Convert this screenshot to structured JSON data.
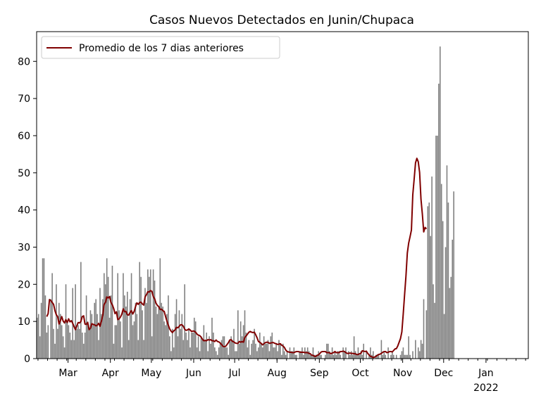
{
  "chart_data": {
    "type": "bar",
    "title": "Casos Nuevos Detectados en Junin/Chupaca",
    "xlabel": "",
    "ylabel": "",
    "ylim": [
      0,
      88
    ],
    "yticks": [
      0,
      10,
      20,
      30,
      40,
      50,
      60,
      70,
      80
    ],
    "xrange": [
      "2021-02-06",
      "2022-01-31"
    ],
    "xticks": [
      {
        "date": "2021-03-01",
        "label": "Mar"
      },
      {
        "date": "2021-04-01",
        "label": "Apr"
      },
      {
        "date": "2021-05-01",
        "label": "May"
      },
      {
        "date": "2021-06-01",
        "label": "Jun"
      },
      {
        "date": "2021-07-01",
        "label": "Jul"
      },
      {
        "date": "2021-08-01",
        "label": "Aug"
      },
      {
        "date": "2021-09-01",
        "label": "Sep"
      },
      {
        "date": "2021-10-01",
        "label": "Oct"
      },
      {
        "date": "2021-11-01",
        "label": "Nov"
      },
      {
        "date": "2021-12-01",
        "label": "Dec"
      },
      {
        "date": "2022-01-01",
        "label": "Jan"
      }
    ],
    "year_label": "2022",
    "legend": {
      "position": "upper-left",
      "label": "Promedio de los 7 dias anteriores"
    },
    "grid": false,
    "bar_color": "#808080",
    "line_color": "#800000",
    "series": [
      {
        "name": "Casos Nuevos",
        "kind": "bar",
        "start_date": "2021-02-06",
        "values": [
          11,
          12,
          6,
          15,
          27,
          27,
          17,
          7,
          9,
          0,
          16,
          23,
          8,
          4,
          20,
          8,
          15,
          12,
          9,
          6,
          3,
          20,
          10,
          9,
          7,
          5,
          19,
          5,
          20,
          8,
          9,
          8,
          26,
          7,
          4,
          7,
          17,
          10,
          8,
          13,
          12,
          9,
          15,
          16,
          12,
          5,
          19,
          12,
          16,
          23,
          20,
          27,
          22,
          11,
          17,
          25,
          4,
          9,
          9,
          23,
          13,
          10,
          3,
          23,
          17,
          14,
          18,
          5,
          16,
          23,
          9,
          10,
          15,
          12,
          5,
          26,
          22,
          13,
          5,
          19,
          15,
          24,
          22,
          24,
          6,
          24,
          21,
          14,
          12,
          14,
          27,
          15,
          14,
          10,
          9,
          12,
          17,
          6,
          2,
          8,
          3,
          12,
          16,
          6,
          13,
          8,
          12,
          5,
          20,
          7,
          5,
          8,
          3,
          7,
          7,
          11,
          10,
          3,
          6,
          2,
          6,
          5,
          9,
          5,
          7,
          2,
          6,
          4,
          11,
          7,
          3,
          2,
          1,
          3,
          4,
          5,
          6,
          6,
          3,
          3,
          1,
          5,
          6,
          5,
          8,
          2,
          2,
          13,
          4,
          10,
          6,
          9,
          13,
          7,
          3,
          5,
          1,
          4,
          5,
          8,
          4,
          2,
          3,
          7,
          4,
          3,
          6,
          4,
          4,
          5,
          2,
          6,
          7,
          3,
          3,
          4,
          2,
          5,
          4,
          1,
          4,
          2,
          1,
          2,
          0,
          3,
          2,
          2,
          3,
          1,
          1,
          0,
          2,
          2,
          3,
          1,
          3,
          2,
          3,
          2,
          1,
          1,
          3,
          1,
          1,
          1,
          2,
          1,
          1,
          0,
          0,
          1,
          4,
          4,
          2,
          1,
          3,
          1,
          2,
          1,
          2,
          2,
          1,
          0,
          3,
          2,
          3,
          0,
          2,
          1,
          2,
          1,
          6,
          2,
          1,
          3,
          1,
          2,
          1,
          4,
          0,
          2,
          0,
          1,
          3,
          1,
          2,
          0,
          1,
          1,
          1,
          0,
          5,
          1,
          2,
          1,
          0,
          3,
          0,
          1,
          2,
          1,
          0,
          1,
          0,
          0,
          1,
          2,
          3,
          1,
          1,
          1,
          6,
          1,
          0,
          2,
          0,
          5,
          0,
          3,
          2,
          5,
          4,
          16,
          0,
          13,
          41,
          42,
          33,
          49,
          20,
          15,
          60,
          60,
          74,
          84,
          47,
          37,
          12,
          30,
          52,
          42,
          19,
          22,
          32,
          45
        ]
      },
      {
        "name": "Promedio de los 7 dias anteriores",
        "kind": "line",
        "start_date": "2021-02-06",
        "values": [
          null,
          null,
          null,
          null,
          null,
          null,
          null,
          11.3,
          12.1,
          15.9,
          15.6,
          15.1,
          14.6,
          12.9,
          11.8,
          11.3,
          9.3,
          10.2,
          11.3,
          10.1,
          9.6,
          10.5,
          9.7,
          10.7,
          9.9,
          10.2,
          9.5,
          8.6,
          7.8,
          8.8,
          9.7,
          9.6,
          10.0,
          11.3,
          11.5,
          9.3,
          9.2,
          9.7,
          7.8,
          8.2,
          9.4,
          9.2,
          9.1,
          8.8,
          9.0,
          9.5,
          8.7,
          10.0,
          11.6,
          14.6,
          15.1,
          16.6,
          16.3,
          16.7,
          15.1,
          14.5,
          13.5,
          12.1,
          12.6,
          10.5,
          10.7,
          11.2,
          12.0,
          13.4,
          12.6,
          12.7,
          11.8,
          11.7,
          12.4,
          12.9,
          12.0,
          12.7,
          14.0,
          15.0,
          14.6,
          15.1,
          15.2,
          14.7,
          14.4,
          16.6,
          17.2,
          18.0,
          17.9,
          18.3,
          18.1,
          16.7,
          16.1,
          14.9,
          14.3,
          14.0,
          13.2,
          13.3,
          12.9,
          12.7,
          11.3,
          10.1,
          9.0,
          8.0,
          7.4,
          7.0,
          7.5,
          7.7,
          8.4,
          8.3,
          8.7,
          9.1,
          9.1,
          8.7,
          7.9,
          7.6,
          7.7,
          8.0,
          7.7,
          7.3,
          7.4,
          7.4,
          7.1,
          6.6,
          6.3,
          6.2,
          5.8,
          5.2,
          4.8,
          4.9,
          4.8,
          5.1,
          5.0,
          5.1,
          4.8,
          4.8,
          4.6,
          5.0,
          4.6,
          4.5,
          4.2,
          3.8,
          3.3,
          3.2,
          3.3,
          3.8,
          4.3,
          5.0,
          5.1,
          4.6,
          4.5,
          4.2,
          4.1,
          4.1,
          4.6,
          4.4,
          4.6,
          4.4,
          5.7,
          6.1,
          6.6,
          7.1,
          7.3,
          7.1,
          7.0,
          7.1,
          6.4,
          5.6,
          4.6,
          4.4,
          4.1,
          3.7,
          4.0,
          4.3,
          4.4,
          4.4,
          4.1,
          4.2,
          4.3,
          4.3,
          4.1,
          4.0,
          3.8,
          3.9,
          4.0,
          3.6,
          3.4,
          3.0,
          2.3,
          1.9,
          1.8,
          1.7,
          1.7,
          1.6,
          1.6,
          1.8,
          1.9,
          1.9,
          1.8,
          1.7,
          1.7,
          1.7,
          1.6,
          1.6,
          1.6,
          1.4,
          1.3,
          0.9,
          0.9,
          0.6,
          0.6,
          0.9,
          1.0,
          1.4,
          1.8,
          1.9,
          1.9,
          1.9,
          1.6,
          1.6,
          1.6,
          1.3,
          1.5,
          1.6,
          1.9,
          1.6,
          1.6,
          1.6,
          1.9,
          1.9,
          2.0,
          1.9,
          1.6,
          1.4,
          1.4,
          1.5,
          1.4,
          1.4,
          1.3,
          1.3,
          1.1,
          1.1,
          1.3,
          1.4,
          2.1,
          2.0,
          1.9,
          2.0,
          1.4,
          1.0,
          0.6,
          0.5,
          0.3,
          0.4,
          0.6,
          0.9,
          1.1,
          1.2,
          1.4,
          1.7,
          1.9,
          1.9,
          1.6,
          1.7,
          1.9,
          1.9,
          1.8,
          2.2,
          2.6,
          2.7,
          3.4,
          4.4,
          5.4,
          7.2,
          12.0,
          17.2,
          22.2,
          28.4,
          31.1,
          32.8,
          34.6,
          44.1,
          48.3,
          52.7,
          53.9,
          53.0,
          50.1,
          42.9,
          38.9,
          34.1,
          35.3,
          34.9
        ]
      }
    ]
  }
}
